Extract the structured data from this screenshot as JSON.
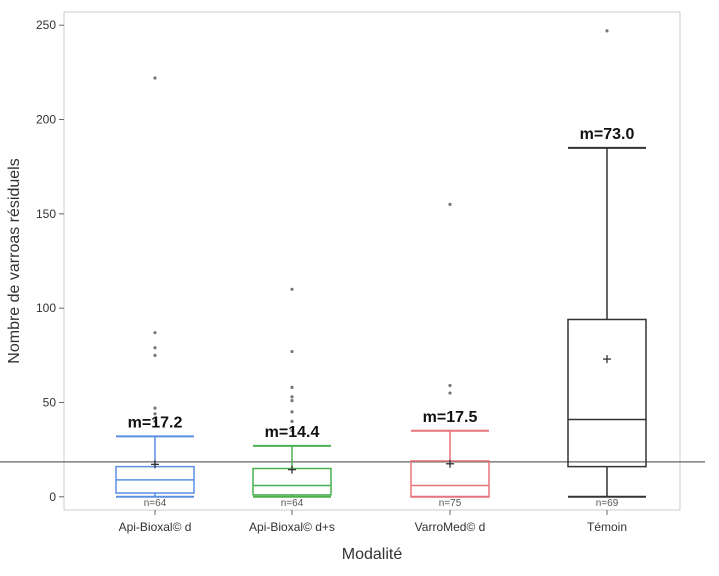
{
  "chart_data": {
    "type": "box",
    "xlabel": "Modalité",
    "ylabel": "Nombre de varroas résiduels",
    "ylim": [
      -7,
      257
    ],
    "yticks": [
      0,
      50,
      100,
      150,
      200,
      250
    ],
    "reference_line": 18.5,
    "grid": false,
    "categories": [
      "Api-Bioxal© d",
      "Api-Bioxal© d+s",
      "VarroMed© d",
      "Témoin"
    ],
    "colors": [
      "#5b8fe3",
      "#4caf50",
      "#e8737b",
      "#333333"
    ],
    "boxes": [
      {
        "min": 0,
        "q1": 2,
        "median": 9,
        "q3": 16,
        "max": 32,
        "mean": 17.2,
        "mean_label": "m=17.2",
        "n_label": "n=64",
        "outliers": [
          40,
          44,
          47,
          75,
          79,
          87,
          222
        ]
      },
      {
        "min": 0,
        "q1": 1,
        "median": 6,
        "q3": 15,
        "max": 27,
        "mean": 14.4,
        "mean_label": "m=14.4",
        "n_label": "n=64",
        "outliers": [
          35,
          40,
          45,
          51,
          53,
          58,
          77,
          110
        ]
      },
      {
        "min": 0,
        "q1": 0,
        "median": 6,
        "q3": 19,
        "max": 35,
        "mean": 17.5,
        "mean_label": "m=17.5",
        "n_label": "n=75",
        "outliers": [
          55,
          59,
          155
        ]
      },
      {
        "min": 0,
        "q1": 16,
        "median": 41,
        "q3": 94,
        "max": 185,
        "mean": 73.0,
        "mean_label": "m=73.0",
        "n_label": "n=69",
        "outliers": [
          247
        ]
      }
    ]
  }
}
